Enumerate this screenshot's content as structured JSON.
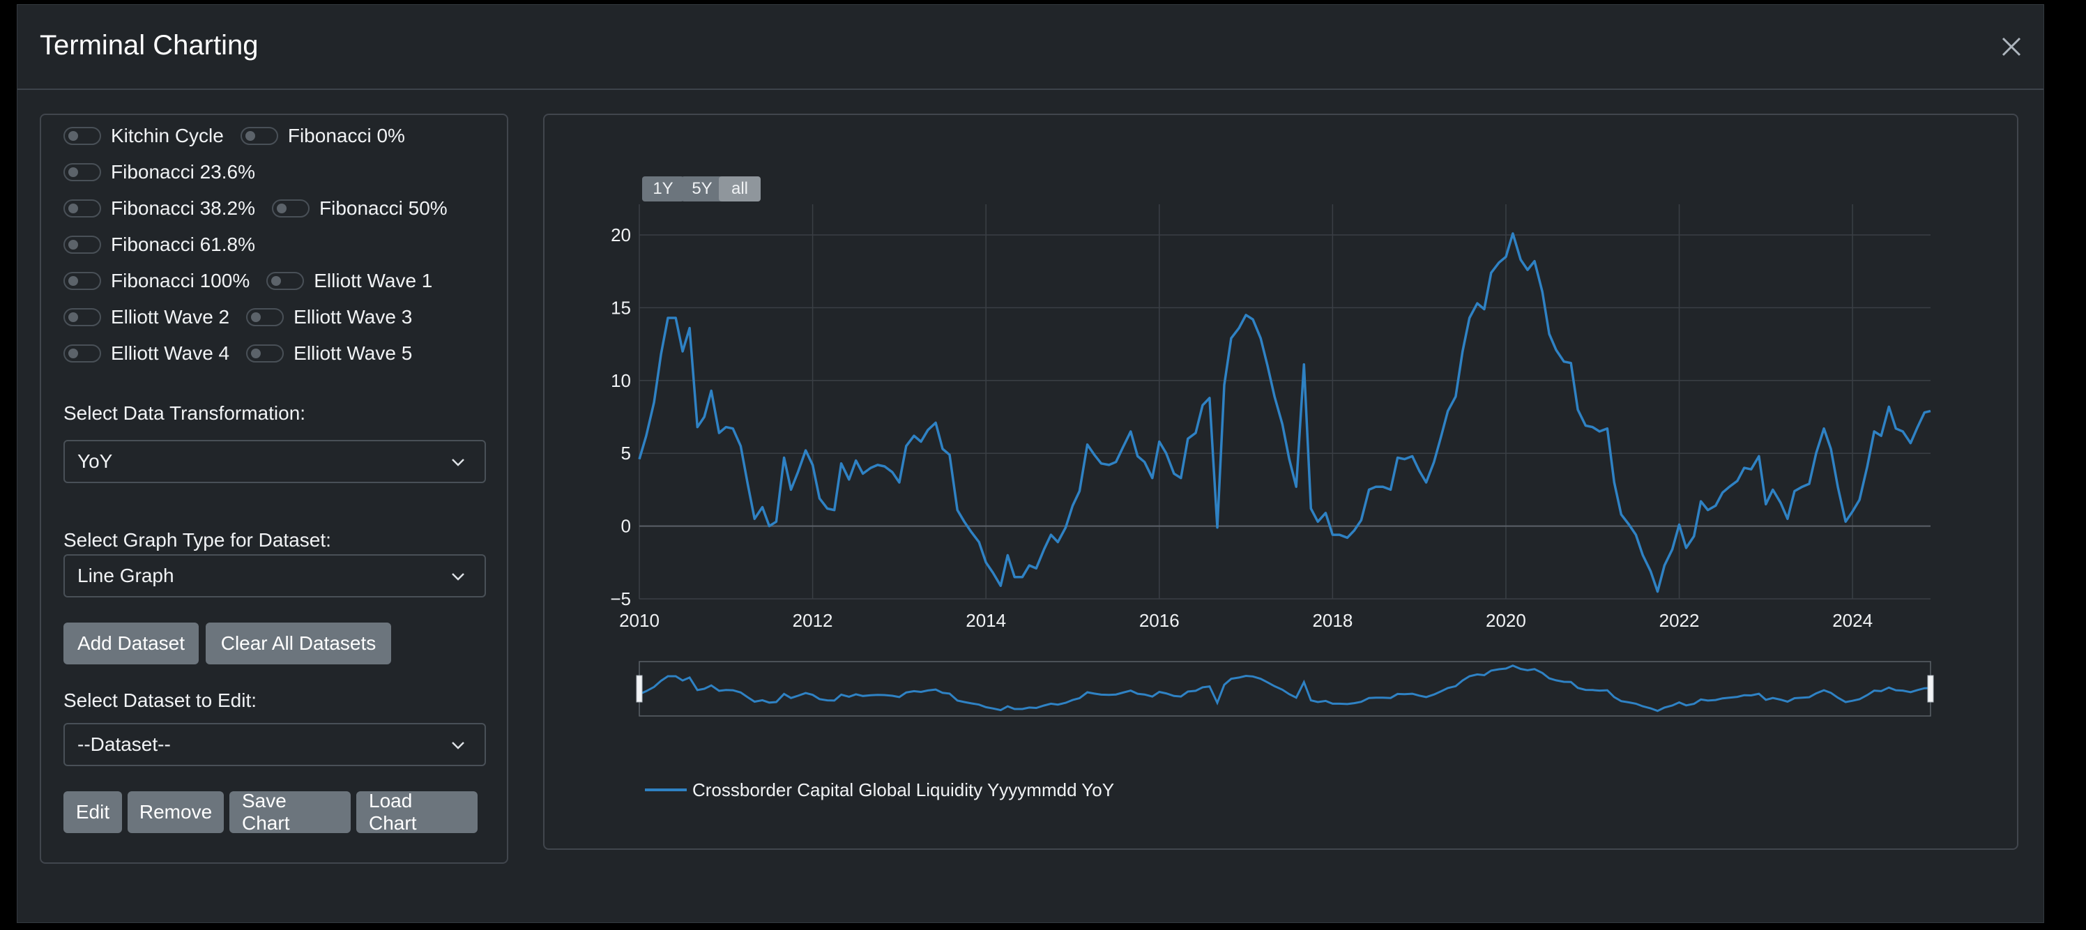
{
  "modal": {
    "title": "Terminal Charting"
  },
  "toggles": {
    "rows": [
      [
        "Kitchin Cycle",
        "Fibonacci 0%"
      ],
      [
        "Fibonacci 23.6%"
      ],
      [
        "Fibonacci 38.2%",
        "Fibonacci 50%"
      ],
      [
        "Fibonacci 61.8%"
      ],
      [
        "Fibonacci 100%",
        "Elliott Wave 1"
      ],
      [
        "Elliott Wave 2",
        "Elliott Wave 3"
      ],
      [
        "Elliott Wave 4",
        "Elliott Wave 5"
      ]
    ]
  },
  "transformation": {
    "label": "Select Data Transformation:",
    "value": "YoY"
  },
  "graph_type": {
    "label": "Select Graph Type for Dataset:",
    "value": "Line Graph"
  },
  "dataset_buttons": {
    "add": "Add Dataset",
    "clear": "Clear All Datasets"
  },
  "edit_dataset": {
    "label": "Select Dataset to Edit:",
    "value": "--Dataset--"
  },
  "action_buttons": {
    "edit": "Edit",
    "remove": "Remove",
    "save": "Save Chart",
    "load": "Load Chart"
  },
  "range_buttons": {
    "one_year": "1Y",
    "five_year": "5Y",
    "all": "all",
    "active": "all"
  },
  "colors": {
    "line": "#2f82c4",
    "background": "#212529",
    "grid": "#3a3f45",
    "border": "#41464d"
  },
  "chart_data": {
    "type": "line",
    "title": "",
    "xlabel": "",
    "ylabel": "",
    "xlim": [
      2010,
      2024.9
    ],
    "ylim": [
      -5,
      20
    ],
    "x_ticks": [
      "2010",
      "2012",
      "2014",
      "2016",
      "2018",
      "2020",
      "2022",
      "2024"
    ],
    "y_ticks": [
      "20",
      "15",
      "10",
      "5",
      "0",
      "−5"
    ],
    "grid": true,
    "legend_position": "bottom-left",
    "range_slider": true,
    "series": [
      {
        "name": "Crossborder Capital Global Liquidity Yyyymmdd  YoY",
        "color": "#2f82c4",
        "x": [
          2010.0,
          2010.08,
          2010.17,
          2010.25,
          2010.33,
          2010.42,
          2010.5,
          2010.58,
          2010.67,
          2010.75,
          2010.83,
          2010.92,
          2011.0,
          2011.08,
          2011.17,
          2011.25,
          2011.33,
          2011.42,
          2011.5,
          2011.58,
          2011.67,
          2011.75,
          2011.83,
          2011.92,
          2012.0,
          2012.08,
          2012.17,
          2012.25,
          2012.33,
          2012.42,
          2012.5,
          2012.58,
          2012.67,
          2012.75,
          2012.83,
          2012.92,
          2013.0,
          2013.08,
          2013.17,
          2013.25,
          2013.33,
          2013.42,
          2013.5,
          2013.58,
          2013.67,
          2013.75,
          2013.83,
          2013.92,
          2014.0,
          2014.08,
          2014.17,
          2014.25,
          2014.33,
          2014.42,
          2014.5,
          2014.58,
          2014.67,
          2014.75,
          2014.83,
          2014.92,
          2015.0,
          2015.08,
          2015.17,
          2015.25,
          2015.33,
          2015.42,
          2015.5,
          2015.58,
          2015.67,
          2015.75,
          2015.83,
          2015.92,
          2016.0,
          2016.08,
          2016.17,
          2016.25,
          2016.33,
          2016.42,
          2016.5,
          2016.58,
          2016.67,
          2016.75,
          2016.83,
          2016.92,
          2017.0,
          2017.08,
          2017.17,
          2017.25,
          2017.33,
          2017.42,
          2017.5,
          2017.58,
          2017.67,
          2017.75,
          2017.83,
          2017.92,
          2018.0,
          2018.08,
          2018.17,
          2018.25,
          2018.33,
          2018.42,
          2018.5,
          2018.58,
          2018.67,
          2018.75,
          2018.83,
          2018.92,
          2019.0,
          2019.08,
          2019.17,
          2019.25,
          2019.33,
          2019.42,
          2019.5,
          2019.58,
          2019.67,
          2019.75,
          2019.83,
          2019.92,
          2020.0,
          2020.08,
          2020.17,
          2020.25,
          2020.33,
          2020.42,
          2020.5,
          2020.58,
          2020.67,
          2020.75,
          2020.83,
          2020.92,
          2021.0,
          2021.08,
          2021.17,
          2021.25,
          2021.33,
          2021.42,
          2021.5,
          2021.58,
          2021.67,
          2021.75,
          2021.83,
          2021.92,
          2022.0,
          2022.08,
          2022.17,
          2022.25,
          2022.33,
          2022.42,
          2022.5,
          2022.58,
          2022.67,
          2022.75,
          2022.83,
          2022.92,
          2023.0,
          2023.08,
          2023.17,
          2023.25,
          2023.33,
          2023.42,
          2023.5,
          2023.58,
          2023.67,
          2023.75,
          2023.83,
          2023.92,
          2024.0,
          2024.08,
          2024.17,
          2024.25,
          2024.33,
          2024.42,
          2024.5,
          2024.58,
          2024.67,
          2024.75,
          2024.83,
          2024.9
        ],
        "y": [
          4.6,
          6.2,
          8.5,
          11.8,
          14.3,
          14.3,
          12.0,
          13.6,
          6.8,
          7.5,
          9.3,
          6.4,
          6.8,
          6.7,
          5.5,
          2.9,
          0.5,
          1.3,
          0.0,
          0.3,
          4.7,
          2.5,
          3.7,
          5.2,
          4.2,
          1.9,
          1.2,
          1.1,
          4.3,
          3.2,
          4.5,
          3.6,
          4.0,
          4.2,
          4.1,
          3.7,
          3.0,
          5.5,
          6.2,
          5.8,
          6.6,
          7.1,
          5.3,
          4.9,
          1.1,
          0.3,
          -0.4,
          -1.1,
          -2.5,
          -3.2,
          -4.1,
          -2.0,
          -3.5,
          -3.5,
          -2.7,
          -2.9,
          -1.6,
          -0.6,
          -1.1,
          -0.1,
          1.4,
          2.4,
          5.6,
          4.9,
          4.3,
          4.2,
          4.4,
          5.4,
          6.5,
          4.8,
          4.4,
          3.3,
          5.8,
          5.0,
          3.6,
          3.3,
          6.0,
          6.4,
          8.3,
          8.8,
          -0.1,
          9.7,
          12.9,
          13.6,
          14.5,
          14.2,
          12.9,
          11.0,
          8.9,
          7.0,
          4.6,
          2.7,
          11.1,
          1.2,
          0.3,
          0.9,
          -0.6,
          -0.6,
          -0.8,
          -0.3,
          0.4,
          2.5,
          2.7,
          2.7,
          2.5,
          4.7,
          4.6,
          4.8,
          3.8,
          3.0,
          4.4,
          6.1,
          7.9,
          8.9,
          12.0,
          14.3,
          15.3,
          14.9,
          17.4,
          18.1,
          18.5,
          20.1,
          18.3,
          17.6,
          18.2,
          16.1,
          13.2,
          12.1,
          11.3,
          11.2,
          8.0,
          6.9,
          6.8,
          6.5,
          6.7,
          3.0,
          0.8,
          0.1,
          -0.6,
          -2.0,
          -3.1,
          -4.5,
          -2.7,
          -1.6,
          0.1,
          -1.5,
          -0.7,
          1.7,
          1.1,
          1.4,
          2.3,
          2.7,
          3.1,
          4.0,
          3.9,
          4.8,
          1.5,
          2.5,
          1.6,
          0.5,
          2.4,
          2.7,
          2.9,
          5.0,
          6.7,
          5.3,
          2.7,
          0.3,
          1.0,
          1.8,
          4.1,
          6.5,
          6.2,
          8.2,
          6.7,
          6.5,
          5.7,
          6.8,
          7.8,
          7.9
        ]
      }
    ]
  }
}
